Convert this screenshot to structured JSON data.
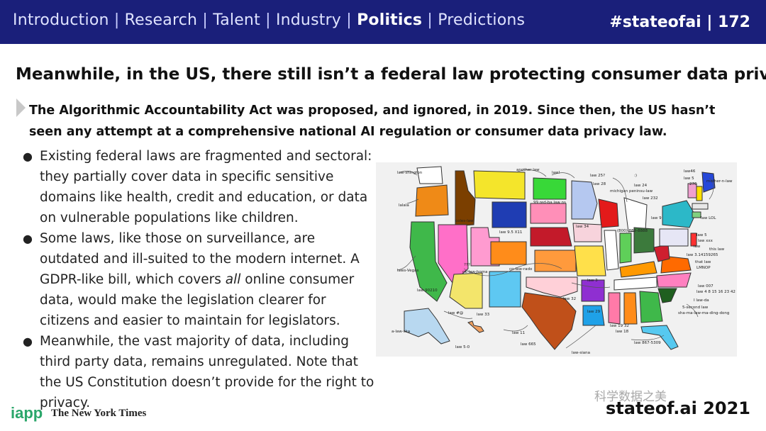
{
  "header": {
    "nav": [
      {
        "label": "Introduction",
        "active": false
      },
      {
        "label": "Research",
        "active": false
      },
      {
        "label": "Talent",
        "active": false
      },
      {
        "label": "Industry",
        "active": false
      },
      {
        "label": "Politics",
        "active": true
      },
      {
        "label": "Predictions",
        "active": false
      }
    ],
    "separator": "|",
    "slide_tag": "#stateofai | 172"
  },
  "title": "Meanwhile, in the US, there still isn’t a federal law protecting consumer data privacy",
  "callout": "The Algorithmic Accountability Act was proposed, and ignored, in 2019. Since then, the US hasn’t seen any attempt at a comprehensive national AI regulation or consumer data privacy law.",
  "bullets": {
    "b1": "Existing federal laws are fragmented and sectoral: they partially cover data in specific sensitive domains like health, credit and education, or data on vulnerable populations like children.",
    "b2_before": "Some laws, like those on surveillance, are outdated and ill-suited to the modern internet. A GDPR-like bill, which covers ",
    "b2_em": "all",
    "b2_after": " online consumer data, would make the legislation clearer for citizens and easier to maintain for legislators.",
    "b3": "Meanwhile, the vast majority of data, including third party data, remains unregulated. Note that the US Constitution doesn’t provide for the right to privacy.",
    "marker": "●"
  },
  "map": {
    "labels": {
      "l1": "law-shington",
      "l2": "lalala",
      "l3": "another law",
      "l4": "law!",
      "l5": "law 25?",
      "l6": "law 28",
      "l7": ":)",
      "l8": "law 24",
      "l9": "law46",
      "l10": "law 5",
      "l11": "276",
      "l12": "mother-n-law",
      "l13": "michigan peninsu-law",
      "l14": "law 232",
      "l15": "99 red-ba law ns",
      "l16": "coles-law",
      "l17": "law 9",
      "l18": "law LOL",
      "l19": "law 9.5 X11",
      "l20": "law 34",
      "l21": "(800) 888-8888",
      "l22": "law 5",
      "l23": "law xxx",
      "l24": "law",
      "l25": "this law",
      "l26": "law 3.14159265",
      "l27": "that law",
      "l28": "LMNOP",
      "l29": "laws-Vegas",
      "l30": "???",
      "l31": "ok-law-homa",
      "l32": "co-law-rado",
      "l33": "law 3",
      "l34": "law 007",
      "l35": "law 4 8 15 16 23 42",
      "l36": "law 90210",
      "l37": "law 32",
      "l38": "I law-da",
      "l39": "5-second law",
      "l40": "sha-ma-law-ma-ding-dong",
      "l41": "law #@",
      "l42": "law 33",
      "l43": "law 29",
      "l44": "a-law-ska",
      "l45": "law 11",
      "l46": "law 19’32",
      "l47": "law 18",
      "l48": "law 5-0",
      "l49": "law 665",
      "l50": "law 867-5309",
      "l51": "law-siana"
    }
  },
  "footer": {
    "logo_iapp": "iapp",
    "logo_nyt": "The New York Times",
    "watermark": "科学数据之美",
    "brand": "stateof.ai 2021"
  }
}
